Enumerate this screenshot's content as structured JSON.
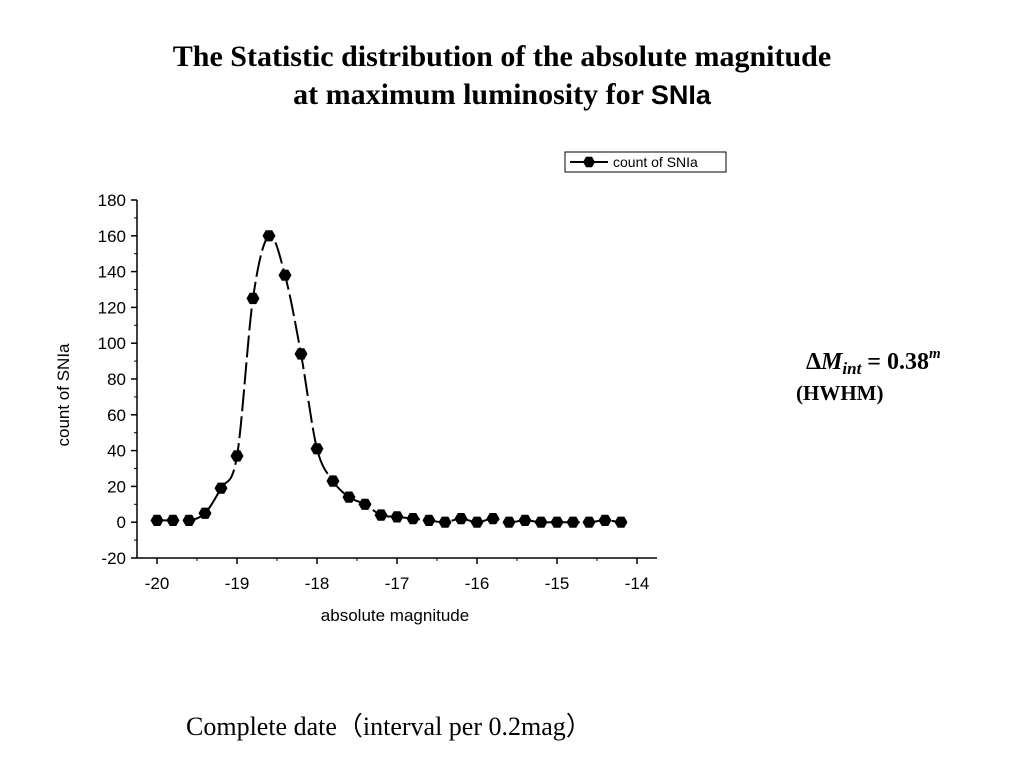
{
  "header": {
    "title_line1": "The Statistic distribution of the absolute magnitude",
    "title_line2": "at maximum luminosity  for ",
    "title_suffix": "SNIa"
  },
  "annotation": {
    "delta": "Δ",
    "symbol": "M",
    "subscript": "int",
    "equals": " = 0.38",
    "superscript": "m",
    "note": "(HWHM)"
  },
  "caption": "Complete date（interval per 0.2mag）",
  "chart_data": {
    "type": "scatter",
    "title": "",
    "xlabel": "absolute magnitude",
    "ylabel": "count of SNIa",
    "xlim": [
      -20.25,
      -13.75
    ],
    "ylim": [
      -20,
      180
    ],
    "xticks": [
      -20,
      -19,
      -18,
      -17,
      -16,
      -15,
      -14
    ],
    "yticks": [
      -20,
      0,
      20,
      40,
      60,
      80,
      100,
      120,
      140,
      160,
      180
    ],
    "legend_position": "top-right",
    "grid": false,
    "series": [
      {
        "name": "count of SNIa",
        "marker": "hexagon",
        "line": "dashed",
        "color": "#000000",
        "x": [
          -20.0,
          -19.8,
          -19.6,
          -19.4,
          -19.2,
          -19.0,
          -18.8,
          -18.6,
          -18.4,
          -18.2,
          -18.0,
          -17.8,
          -17.6,
          -17.4,
          -17.2,
          -17.0,
          -16.8,
          -16.6,
          -16.4,
          -16.2,
          -16.0,
          -15.8,
          -15.6,
          -15.4,
          -15.2,
          -15.0,
          -14.8,
          -14.6,
          -14.4,
          -14.2
        ],
        "y": [
          1,
          1,
          1,
          5,
          19,
          37,
          125,
          160,
          138,
          94,
          41,
          23,
          14,
          10,
          4,
          3,
          2,
          1,
          0,
          2,
          0,
          2,
          0,
          1,
          0,
          0,
          0,
          0,
          1,
          0
        ]
      }
    ]
  }
}
